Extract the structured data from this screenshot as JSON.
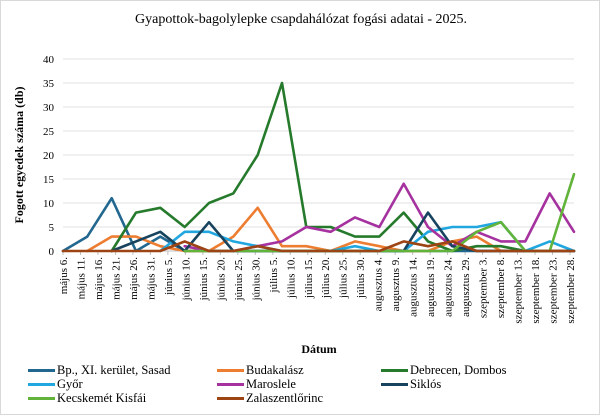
{
  "chart_data": {
    "type": "line",
    "title": "Gyapottok-bagolylepke csapdahálózat fogási adatai - 2025.",
    "xlabel": "Dátum",
    "ylabel": "Fogott egyedek száma (db)",
    "ylim": [
      0,
      40
    ],
    "yticks": [
      "0",
      "5",
      "10",
      "15",
      "20",
      "25",
      "30",
      "35",
      "40"
    ],
    "grid": true,
    "legend_position": "bottom",
    "x_tick_labels": [
      "május 6.",
      "május 11.",
      "május 16.",
      "május 21.",
      "május 26.",
      "május 31.",
      "június 5.",
      "június 10.",
      "június 15.",
      "június 20.",
      "június 25.",
      "június 30.",
      "július 5.",
      "július 10.",
      "július 15.",
      "július 20.",
      "július 25.",
      "július 30.",
      "augusztus 4.",
      "augusztus 9.",
      "augusztus 14.",
      "augusztus 19.",
      "augusztus 24.",
      "augusztus 29.",
      "szeptember 3.",
      "szeptember 8.",
      "szeptember 13.",
      "szeptember 18.",
      "szeptember 23.",
      "szeptember 28."
    ],
    "point_count": 22,
    "series": [
      {
        "name": "Bp., XI. kerület, Sasad",
        "color": "#22678F",
        "values": [
          0,
          3,
          11,
          0,
          3,
          0,
          0,
          0,
          0,
          0,
          0,
          0,
          0,
          0,
          0,
          0,
          0,
          0,
          0,
          0,
          0,
          0
        ]
      },
      {
        "name": "Budakalász",
        "color": "#ED7D31",
        "values": [
          null,
          0,
          3,
          3,
          1,
          0,
          0,
          3,
          9,
          1,
          1,
          0,
          2,
          1,
          0,
          0,
          2,
          3,
          0,
          0,
          0,
          0
        ]
      },
      {
        "name": "Debrecen, Dombos",
        "color": "#267A2C",
        "values": [
          null,
          null,
          0,
          8,
          9,
          5,
          10,
          12,
          20,
          35,
          5,
          5,
          3,
          3,
          8,
          2,
          0,
          1,
          1,
          0,
          null,
          null
        ]
      },
      {
        "name": "Győr",
        "color": "#21A7DF",
        "values": [
          null,
          null,
          null,
          null,
          0,
          4,
          4,
          2,
          1,
          0,
          0,
          0,
          1,
          0,
          0,
          4,
          5,
          5,
          6,
          0,
          2,
          0
        ]
      },
      {
        "name": "Maroslele",
        "color": "#A5329F",
        "values": [
          null,
          null,
          null,
          null,
          null,
          1,
          0,
          0,
          1,
          2,
          5,
          4,
          7,
          5,
          14,
          5,
          1,
          4,
          2,
          2,
          12,
          4
        ]
      },
      {
        "name": "Siklós",
        "color": "#17435E",
        "values": [
          null,
          null,
          0,
          2,
          4,
          0,
          6,
          0,
          0,
          0,
          0,
          0,
          0,
          0,
          0,
          8,
          1,
          0,
          0,
          0,
          0,
          0
        ]
      },
      {
        "name": "Kecskemét Kisfái",
        "color": "#62B33A",
        "values": [
          null,
          null,
          null,
          null,
          null,
          0,
          0,
          0,
          0,
          0,
          0,
          0,
          0,
          0,
          0,
          0,
          0,
          4,
          6,
          0,
          0,
          16
        ]
      },
      {
        "name": "Zalaszentlőrinc",
        "color": "#9C4414",
        "values": [
          0,
          0,
          0,
          0,
          0,
          2,
          0,
          0,
          1,
          0,
          0,
          0,
          0,
          0,
          2,
          1,
          2,
          0,
          0,
          0,
          0,
          0
        ]
      }
    ]
  }
}
